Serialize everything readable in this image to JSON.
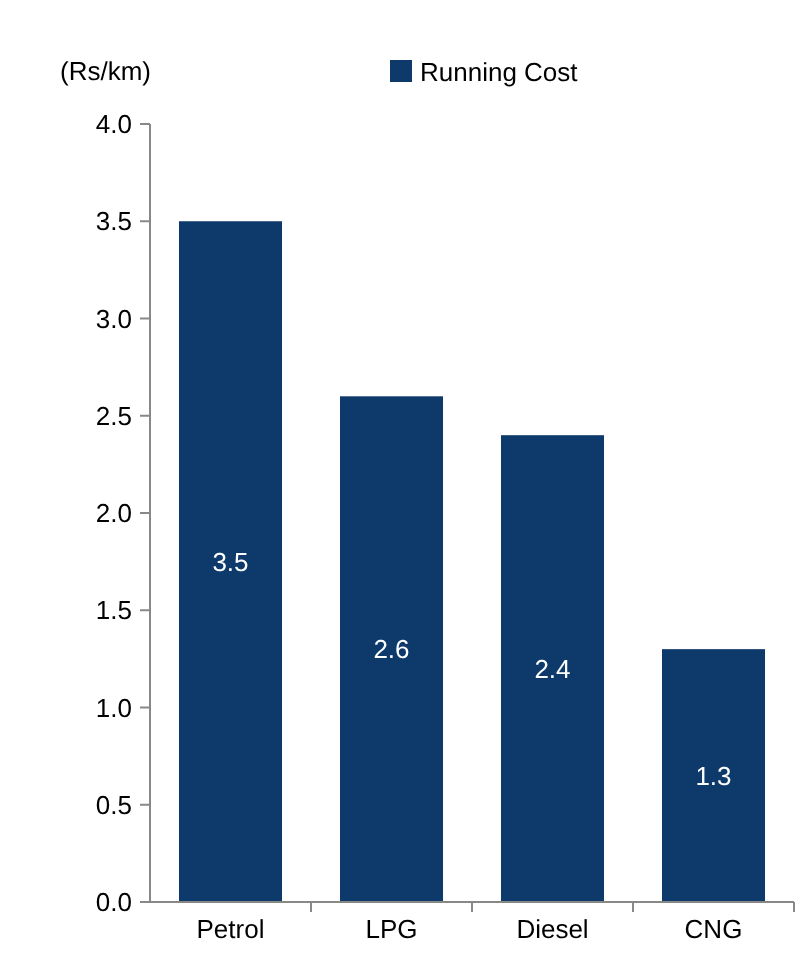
{
  "chart_data": {
    "type": "bar",
    "ylabel": "(Rs/km)",
    "categories": [
      "Petrol",
      "LPG",
      "Diesel",
      "CNG"
    ],
    "series": [
      {
        "name": "Running Cost",
        "color": "#0d3a6b",
        "values": [
          3.5,
          2.6,
          2.4,
          1.3
        ]
      }
    ],
    "ylim": [
      0,
      4
    ],
    "yticks": [
      {
        "value": 0,
        "label": "0.0"
      },
      {
        "value": 0.5,
        "label": "0.5"
      },
      {
        "value": 1,
        "label": "1.0"
      },
      {
        "value": 1.5,
        "label": "1.5"
      },
      {
        "value": 2,
        "label": "2.0"
      },
      {
        "value": 2.5,
        "label": "2.5"
      },
      {
        "value": 3,
        "label": "3.0"
      },
      {
        "value": 3.5,
        "label": "3.5"
      },
      {
        "value": 4,
        "label": "4.0"
      }
    ],
    "grid": false,
    "legend": "top",
    "data_labels": true
  }
}
